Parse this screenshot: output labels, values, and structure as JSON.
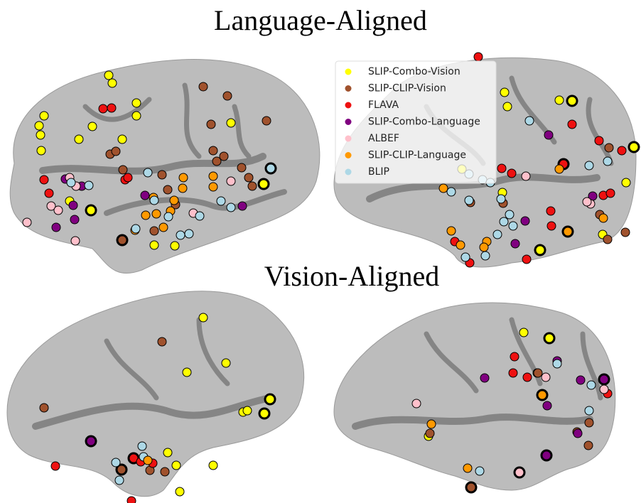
{
  "titles": {
    "top": "Language-Aligned",
    "bottom": "Vision-Aligned"
  },
  "legend": [
    {
      "label": "SLIP-Combo-Vision",
      "color": "#ffff00"
    },
    {
      "label": "SLIP-CLIP-Vision",
      "color": "#a0522d"
    },
    {
      "label": "FLAVA",
      "color": "#ee1111"
    },
    {
      "label": "SLIP-Combo-Language",
      "color": "#800080"
    },
    {
      "label": "ALBEF",
      "color": "#ffc0cb"
    },
    {
      "label": "SLIP-CLIP-Language",
      "color": "#ff9900"
    },
    {
      "label": "BLIP",
      "color": "#add8e6"
    }
  ]
}
